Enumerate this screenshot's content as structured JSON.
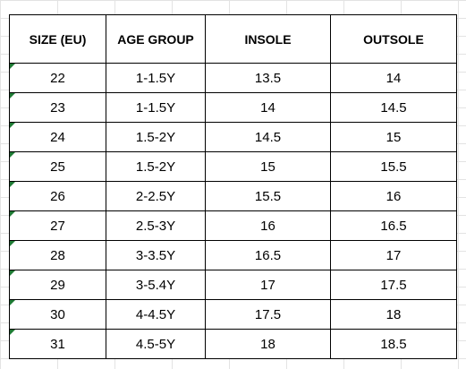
{
  "table": {
    "headers": [
      "SIZE (EU)",
      "AGE GROUP",
      "INSOLE",
      "OUTSOLE"
    ],
    "rows": [
      [
        "22",
        "1-1.5Y",
        "13.5",
        "14"
      ],
      [
        "23",
        "1-1.5Y",
        "14",
        "14.5"
      ],
      [
        "24",
        "1.5-2Y",
        "14.5",
        "15"
      ],
      [
        "25",
        "1.5-2Y",
        "15",
        "15.5"
      ],
      [
        "26",
        "2-2.5Y",
        "15.5",
        "16"
      ],
      [
        "27",
        "2.5-3Y",
        "16",
        "16.5"
      ],
      [
        "28",
        "3-3.5Y",
        "16.5",
        "17"
      ],
      [
        "29",
        "3-5.4Y",
        "17",
        "17.5"
      ],
      [
        "30",
        "4-4.5Y",
        "17.5",
        "18"
      ],
      [
        "31",
        "4.5-5Y",
        "18",
        "18.5"
      ]
    ]
  },
  "colors": {
    "border": "#000000",
    "text_flag": "#1e7b34",
    "gridline": "#e3e3e3"
  }
}
